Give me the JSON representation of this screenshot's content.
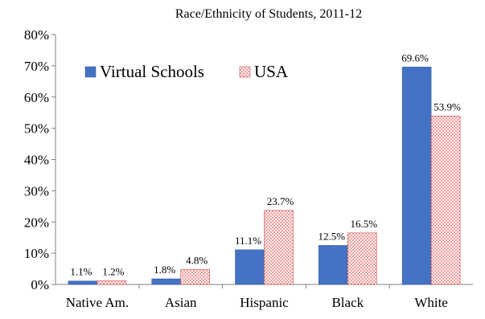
{
  "chart_data": {
    "type": "bar",
    "title": "Race/Ethnicity of Students, 2011-12",
    "xlabel": "",
    "ylabel": "",
    "ylim": [
      0,
      80
    ],
    "ytick_step": 10,
    "value_format": "percent",
    "grid": false,
    "legend_position": "top-left",
    "categories": [
      "Native Am.",
      "Asian",
      "Hispanic",
      "Black",
      "White"
    ],
    "series": [
      {
        "name": "Virtual Schools",
        "values": [
          1.1,
          1.8,
          11.1,
          12.5,
          69.6
        ],
        "labels": [
          "1.1%",
          "1.8%",
          "11.1%",
          "12.5%",
          "69.6%"
        ],
        "color": "#4472C4",
        "pattern": "solid"
      },
      {
        "name": "USA",
        "values": [
          1.2,
          4.8,
          23.7,
          16.5,
          53.9
        ],
        "labels": [
          "1.2%",
          "4.8%",
          "23.7%",
          "16.5%",
          "53.9%"
        ],
        "color": "#F4B8B8",
        "pattern": "dotted"
      }
    ]
  }
}
